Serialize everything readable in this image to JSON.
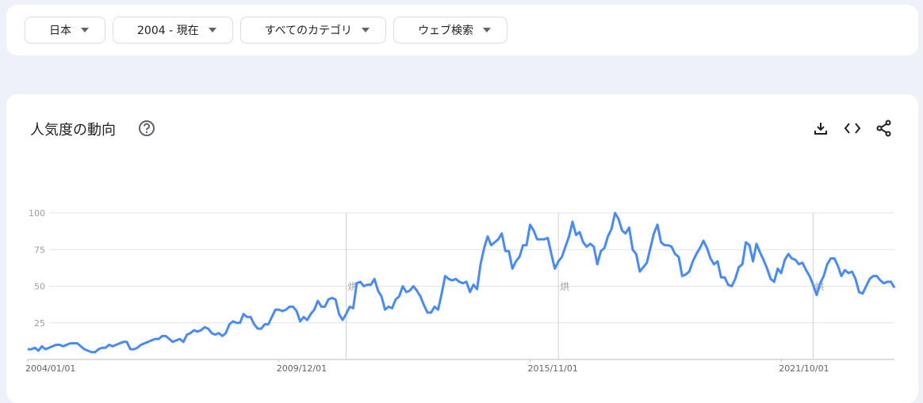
{
  "filters": [
    "日本",
    "2004 - 現在",
    "すべてのカテゴリ",
    "ウェブ検索"
  ],
  "panel": {
    "title": "人気度の動向"
  },
  "chart_data": {
    "type": "line",
    "color": "#4a8af4",
    "grid": true,
    "ylim": [
      0,
      100
    ],
    "yticks": [
      25,
      50,
      75,
      100
    ],
    "xticks": [
      "2004/01/01",
      "2009/12/01",
      "2015/11/01",
      "2021/10/01"
    ],
    "annotations": [
      {
        "x": "2011/07/01",
        "label": "烘"
      },
      {
        "x": "2016/07/01",
        "label": "烘"
      },
      {
        "x": "2022/07/01",
        "label": "烘"
      }
    ],
    "x": [
      "2004/01/01",
      "2004/02/01",
      "2004/03/01",
      "2004/04/01",
      "2004/05/01",
      "2004/06/01",
      "2004/07/01",
      "2004/08/01",
      "2004/09/01",
      "2004/10/01",
      "2004/11/01",
      "2004/12/01",
      "2005/01/01",
      "2005/02/01",
      "2005/03/01",
      "2005/04/01",
      "2005/05/01",
      "2005/06/01",
      "2005/07/01",
      "2005/08/01",
      "2005/09/01",
      "2005/10/01",
      "2005/11/01",
      "2005/12/01",
      "2006/01/01",
      "2006/02/01",
      "2006/03/01",
      "2006/04/01",
      "2006/05/01",
      "2006/06/01",
      "2006/07/01",
      "2006/08/01",
      "2006/09/01",
      "2006/10/01",
      "2006/11/01",
      "2006/12/01",
      "2007/01/01",
      "2007/02/01",
      "2007/03/01",
      "2007/04/01",
      "2007/05/01",
      "2007/06/01",
      "2007/07/01",
      "2007/08/01",
      "2007/09/01",
      "2007/10/01",
      "2007/11/01",
      "2007/12/01",
      "2008/01/01",
      "2008/02/01",
      "2008/03/01",
      "2008/04/01",
      "2008/05/01",
      "2008/06/01",
      "2008/07/01",
      "2008/08/01",
      "2008/09/01",
      "2008/10/01",
      "2008/11/01",
      "2008/12/01",
      "2009/01/01",
      "2009/02/01",
      "2009/03/01",
      "2009/04/01",
      "2009/05/01",
      "2009/06/01",
      "2009/07/01",
      "2009/08/01",
      "2009/09/01",
      "2009/10/01",
      "2009/11/01",
      "2009/12/01",
      "2010/01/01",
      "2010/02/01",
      "2010/03/01",
      "2010/04/01",
      "2010/05/01",
      "2010/06/01",
      "2010/07/01",
      "2010/08/01",
      "2010/09/01",
      "2010/10/01",
      "2010/11/01",
      "2010/12/01",
      "2011/01/01",
      "2011/02/01",
      "2011/03/01",
      "2011/04/01",
      "2011/05/01",
      "2011/06/01",
      "2011/07/01",
      "2011/08/01",
      "2011/09/01",
      "2011/10/01",
      "2011/11/01",
      "2011/12/01",
      "2012/01/01",
      "2012/02/01",
      "2012/03/01",
      "2012/04/01",
      "2012/05/01",
      "2012/06/01",
      "2012/07/01",
      "2012/08/01",
      "2012/09/01",
      "2012/10/01",
      "2012/11/01",
      "2012/12/01",
      "2013/01/01",
      "2013/02/01",
      "2013/03/01",
      "2013/04/01",
      "2013/05/01",
      "2013/06/01",
      "2013/07/01",
      "2013/08/01",
      "2013/09/01",
      "2013/10/01",
      "2013/11/01",
      "2013/12/01",
      "2014/01/01",
      "2014/02/01",
      "2014/03/01",
      "2014/04/01",
      "2014/05/01",
      "2014/06/01",
      "2014/07/01",
      "2014/08/01",
      "2014/09/01",
      "2014/10/01",
      "2014/11/01",
      "2014/12/01",
      "2015/01/01",
      "2015/02/01",
      "2015/03/01",
      "2015/04/01",
      "2015/05/01",
      "2015/06/01",
      "2015/07/01",
      "2015/08/01",
      "2015/09/01",
      "2015/10/01",
      "2015/11/01",
      "2015/12/01",
      "2016/01/01",
      "2016/02/01",
      "2016/03/01",
      "2016/04/01",
      "2016/05/01",
      "2016/06/01",
      "2016/07/01",
      "2016/08/01",
      "2016/09/01",
      "2016/10/01",
      "2016/11/01",
      "2016/12/01",
      "2017/01/01",
      "2017/02/01",
      "2017/03/01",
      "2017/04/01",
      "2017/05/01",
      "2017/06/01",
      "2017/07/01",
      "2017/08/01",
      "2017/09/01",
      "2017/10/01",
      "2017/11/01",
      "2017/12/01",
      "2018/01/01",
      "2018/02/01",
      "2018/03/01",
      "2018/04/01",
      "2018/05/01",
      "2018/06/01",
      "2018/07/01",
      "2018/08/01",
      "2018/09/01",
      "2018/10/01",
      "2018/11/01",
      "2018/12/01",
      "2019/01/01",
      "2019/02/01",
      "2019/03/01",
      "2019/04/01",
      "2019/05/01",
      "2019/06/01",
      "2019/07/01",
      "2019/08/01",
      "2019/09/01",
      "2019/10/01",
      "2019/11/01",
      "2019/12/01",
      "2020/01/01",
      "2020/02/01",
      "2020/03/01",
      "2020/04/01",
      "2020/05/01",
      "2020/06/01",
      "2020/07/01",
      "2020/08/01",
      "2020/09/01",
      "2020/10/01",
      "2020/11/01",
      "2020/12/01",
      "2021/01/01",
      "2021/02/01",
      "2021/03/01",
      "2021/04/01",
      "2021/05/01",
      "2021/06/01",
      "2021/07/01",
      "2021/08/01",
      "2021/09/01",
      "2021/10/01",
      "2021/11/01",
      "2021/12/01",
      "2022/01/01",
      "2022/02/01",
      "2022/03/01",
      "2022/04/01",
      "2022/05/01",
      "2022/06/01",
      "2022/07/01",
      "2022/08/01",
      "2022/09/01",
      "2022/10/01",
      "2022/11/01",
      "2022/12/01",
      "2023/01/01",
      "2023/02/01",
      "2023/03/01",
      "2023/04/01",
      "2023/05/01",
      "2023/06/01",
      "2023/07/01",
      "2023/08/01",
      "2023/09/01",
      "2023/10/01",
      "2023/11/01",
      "2023/12/01",
      "2024/01/01",
      "2024/02/01",
      "2024/03/01",
      "2024/04/01",
      "2024/05/01",
      "2024/06/01"
    ],
    "values": [
      7,
      7,
      8,
      6,
      9,
      7,
      8,
      9,
      10,
      10,
      9,
      10,
      11,
      11,
      11,
      9,
      7,
      6,
      5,
      5,
      7,
      8,
      8,
      10,
      9,
      10,
      11,
      12,
      12,
      7,
      7,
      8,
      10,
      11,
      12,
      13,
      14,
      14,
      16,
      16,
      14,
      12,
      13,
      14,
      12,
      17,
      18,
      20,
      19,
      20,
      22,
      21,
      18,
      17,
      18,
      16,
      18,
      24,
      26,
      25,
      25,
      31,
      29,
      29,
      24,
      21,
      21,
      24,
      24,
      29,
      34,
      34,
      33,
      34,
      36,
      36,
      33,
      26,
      29,
      27,
      31,
      34,
      40,
      36,
      36,
      41,
      42,
      41,
      31,
      27,
      31,
      36,
      35,
      52,
      53,
      50,
      51,
      51,
      55,
      47,
      43,
      34,
      36,
      35,
      41,
      43,
      50,
      46,
      47,
      50,
      47,
      43,
      37,
      32,
      32,
      36,
      34,
      45,
      57,
      55,
      54,
      55,
      53,
      52,
      53,
      46,
      51,
      48,
      65,
      76,
      84,
      78,
      80,
      82,
      86,
      74,
      74,
      62,
      67,
      70,
      78,
      78,
      92,
      88,
      82,
      82,
      82,
      83,
      72,
      62,
      67,
      70,
      77,
      84,
      94,
      85,
      87,
      80,
      77,
      79,
      77,
      65,
      74,
      76,
      84,
      89,
      100,
      96,
      88,
      86,
      90,
      75,
      72,
      60,
      63,
      66,
      76,
      86,
      92,
      80,
      78,
      78,
      77,
      72,
      70,
      57,
      58,
      60,
      67,
      72,
      76,
      81,
      76,
      69,
      65,
      67,
      56,
      56,
      51,
      50,
      55,
      63,
      65,
      80,
      78,
      67,
      79,
      73,
      68,
      62,
      55,
      53,
      62,
      59,
      68,
      72,
      69,
      68,
      65,
      66,
      61,
      57,
      51,
      44,
      52,
      57,
      65,
      69,
      69,
      64,
      57,
      61,
      59,
      60,
      55,
      46,
      45,
      50,
      55,
      57,
      57,
      54,
      52,
      53,
      53,
      49
    ]
  }
}
